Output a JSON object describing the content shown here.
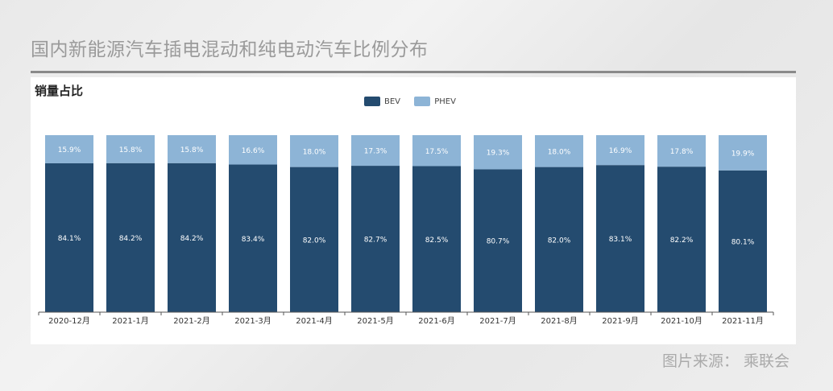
{
  "page": {
    "title": "国内新能源汽车插电混动和纯电动汽车比例分布",
    "source": "图片来源：  乘联会"
  },
  "chart_data": {
    "type": "bar",
    "stacked": true,
    "title": "销量占比",
    "xlabel": "",
    "ylabel": "",
    "ylim": [
      0,
      100
    ],
    "legend_position": "top-center",
    "categories": [
      "2020-12月",
      "2021-1月",
      "2021-2月",
      "2021-3月",
      "2021-4月",
      "2021-5月",
      "2021-6月",
      "2021-7月",
      "2021-8月",
      "2021-9月",
      "2021-10月",
      "2021-11月"
    ],
    "series": [
      {
        "name": "BEV",
        "color": "#244b6f",
        "values": [
          84.1,
          84.2,
          84.2,
          83.4,
          82.0,
          82.7,
          82.5,
          80.7,
          82.0,
          83.1,
          82.2,
          80.1
        ],
        "labels": [
          "84.1%",
          "84.2%",
          "84.2%",
          "83.4%",
          "82.0%",
          "82.7%",
          "82.5%",
          "80.7%",
          "82.0%",
          "83.1%",
          "82.2%",
          "80.1%"
        ]
      },
      {
        "name": "PHEV",
        "color": "#8db4d6",
        "values": [
          15.9,
          15.8,
          15.8,
          16.6,
          18.0,
          17.3,
          17.5,
          19.3,
          18.0,
          16.9,
          17.8,
          19.9
        ],
        "labels": [
          "15.9%",
          "15.8%",
          "15.8%",
          "16.6%",
          "18.0%",
          "17.3%",
          "17.5%",
          "19.3%",
          "18.0%",
          "16.9%",
          "17.8%",
          "19.9%"
        ]
      }
    ]
  }
}
